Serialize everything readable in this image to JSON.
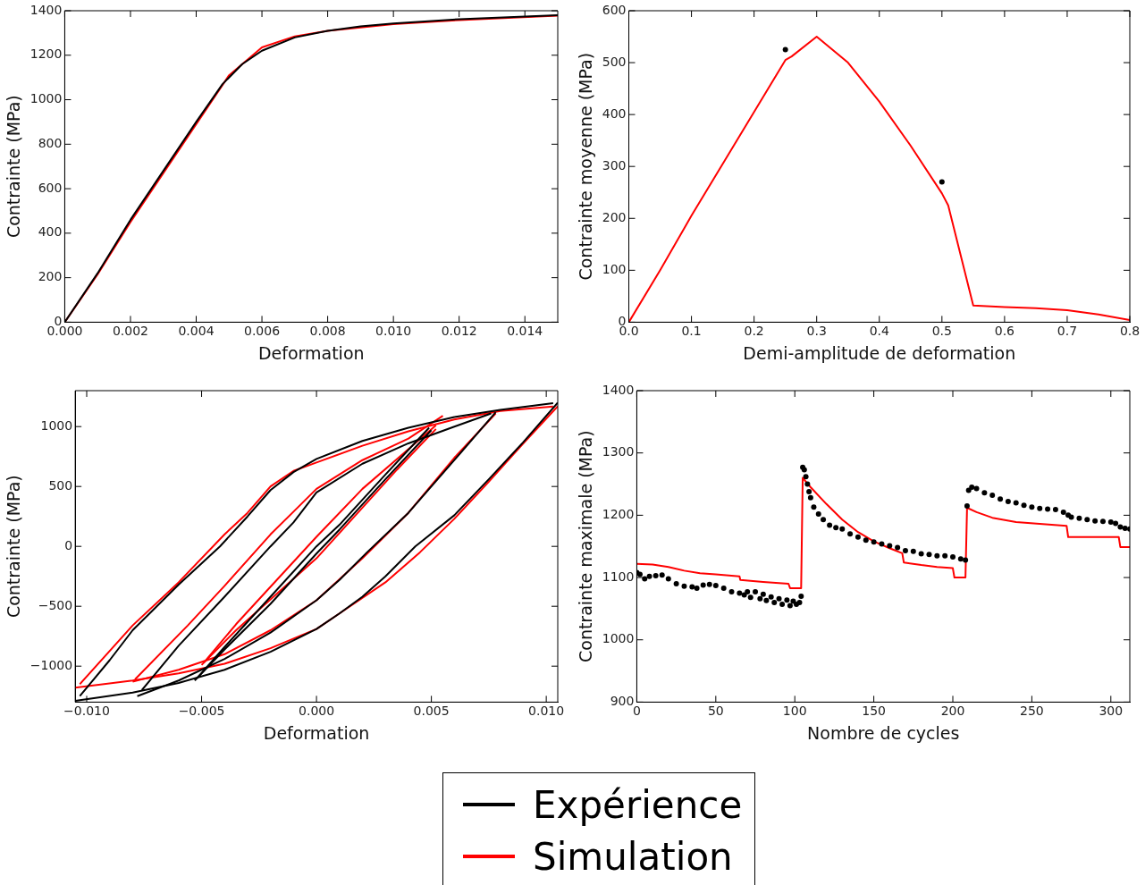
{
  "chart_data": [
    {
      "type": "line",
      "xlabel": "Deformation",
      "ylabel": "Contrainte (MPa)",
      "legend": "bottom",
      "xlim": [
        0,
        0.015
      ],
      "ylim": [
        0,
        1400
      ],
      "xticks": [
        {
          "value": 0,
          "label": "0.000"
        },
        {
          "value": 0.002,
          "label": "0.002"
        },
        {
          "value": 0.004,
          "label": "0.004"
        },
        {
          "value": 0.006,
          "label": "0.006"
        },
        {
          "value": 0.008,
          "label": "0.008"
        },
        {
          "value": 0.01,
          "label": "0.010"
        },
        {
          "value": 0.012,
          "label": "0.012"
        },
        {
          "value": 0.014,
          "label": "0.014"
        }
      ],
      "yticks": [
        0,
        200,
        400,
        600,
        800,
        1000,
        1200,
        1400
      ],
      "grid": false,
      "series": [
        {
          "name": "Expérience",
          "color": "#000000",
          "x": [
            0,
            0.001,
            0.002,
            0.003,
            0.004,
            0.0048,
            0.0054,
            0.006,
            0.007,
            0.008,
            0.009,
            0.01,
            0.012,
            0.015
          ],
          "values": [
            0,
            220,
            460,
            680,
            900,
            1070,
            1160,
            1220,
            1280,
            1310,
            1330,
            1343,
            1362,
            1380
          ]
        },
        {
          "name": "Simulation",
          "color": "#ff0000",
          "x": [
            0,
            0.001,
            0.002,
            0.003,
            0.004,
            0.005,
            0.006,
            0.007,
            0.008,
            0.01,
            0.012,
            0.015
          ],
          "values": [
            0,
            215,
            450,
            670,
            890,
            1110,
            1235,
            1285,
            1310,
            1340,
            1358,
            1378
          ]
        }
      ]
    },
    {
      "type": "line",
      "xlabel": "Demi-amplitude de deformation",
      "ylabel": "Contrainte moyenne (MPa)",
      "xlim": [
        0,
        0.8
      ],
      "ylim": [
        0,
        600
      ],
      "xticks": [
        {
          "value": 0,
          "label": "0.0"
        },
        {
          "value": 0.1,
          "label": "0.1"
        },
        {
          "value": 0.2,
          "label": "0.2"
        },
        {
          "value": 0.3,
          "label": "0.3"
        },
        {
          "value": 0.4,
          "label": "0.4"
        },
        {
          "value": 0.5,
          "label": "0.5"
        },
        {
          "value": 0.6,
          "label": "0.6"
        },
        {
          "value": 0.7,
          "label": "0.7"
        },
        {
          "value": 0.8,
          "label": "0.8"
        }
      ],
      "yticks": [
        0,
        100,
        200,
        300,
        400,
        500,
        600
      ],
      "grid": false,
      "series": [
        {
          "name": "Expérience",
          "type": "scatter",
          "marker": "circle",
          "color": "#000000",
          "x": [
            0.25,
            0.5
          ],
          "values": [
            525,
            270
          ]
        },
        {
          "name": "Simulation",
          "color": "#ff0000",
          "x": [
            0,
            0.05,
            0.1,
            0.15,
            0.2,
            0.25,
            0.26,
            0.3,
            0.35,
            0.4,
            0.45,
            0.5,
            0.51,
            0.55,
            0.6,
            0.65,
            0.7,
            0.75,
            0.8
          ],
          "values": [
            0,
            100,
            205,
            305,
            405,
            505,
            512,
            550,
            500,
            425,
            340,
            248,
            225,
            32,
            29,
            27,
            23,
            15,
            4
          ]
        }
      ]
    },
    {
      "type": "line",
      "xlabel": "Deformation",
      "ylabel": "Contrainte (MPa)",
      "xlim": [
        -0.0105,
        0.0105
      ],
      "ylim": [
        -1300,
        1300
      ],
      "xticks": [
        {
          "value": -0.01,
          "label": "−0.010"
        },
        {
          "value": -0.005,
          "label": "−0.005"
        },
        {
          "value": 0,
          "label": "0.000"
        },
        {
          "value": 0.005,
          "label": "0.005"
        },
        {
          "value": 0.01,
          "label": "0.010"
        }
      ],
      "yticks": [
        {
          "value": -1000,
          "label": "−1000"
        },
        {
          "value": -500,
          "label": "−500"
        },
        0,
        500,
        1000
      ],
      "grid": false,
      "series": [
        {
          "name": "Expérience",
          "color": "#000000",
          "x": [
            0.0105,
            0.009,
            0.0075,
            0.006,
            0.0043,
            0.003,
            0.002,
            0.001,
            0,
            -0.002,
            -0.004,
            -0.006,
            -0.008,
            -0.0105
          ],
          "values": [
            1200,
            870,
            560,
            260,
            0,
            -250,
            -420,
            -560,
            -690,
            -880,
            -1030,
            -1140,
            -1220,
            -1290
          ]
        },
        {
          "name": "Expérience",
          "color": "#000000",
          "x": [
            -0.0103,
            -0.009,
            -0.008,
            -0.006,
            -0.0042,
            -0.003,
            -0.002,
            -0.001,
            0,
            0.002,
            0.004,
            0.006,
            0.008,
            0.0103
          ],
          "values": [
            -1250,
            -950,
            -700,
            -320,
            0,
            250,
            470,
            620,
            730,
            880,
            990,
            1080,
            1140,
            1195
          ]
        },
        {
          "name": "Expérience",
          "color": "#000000",
          "x": [
            0.0078,
            0.006,
            0.004,
            0.0022,
            0.001,
            0,
            -0.002,
            -0.004,
            -0.006,
            -0.0078
          ],
          "values": [
            1120,
            720,
            280,
            -50,
            -280,
            -450,
            -720,
            -940,
            -1120,
            -1250
          ]
        },
        {
          "name": "Expérience",
          "color": "#000000",
          "x": [
            -0.0076,
            -0.006,
            -0.004,
            -0.002,
            -0.001,
            0,
            0.002,
            0.004,
            0.006,
            0.0076
          ],
          "values": [
            -1200,
            -830,
            -420,
            0,
            200,
            450,
            690,
            860,
            1000,
            1110
          ]
        },
        {
          "name": "Expérience",
          "color": "#000000",
          "x": [
            0.005,
            0.003,
            0.001,
            0,
            -0.002,
            -0.004,
            -0.0053
          ],
          "values": [
            970,
            560,
            140,
            -60,
            -480,
            -860,
            -1120
          ]
        },
        {
          "name": "Expérience",
          "color": "#000000",
          "x": [
            -0.0052,
            -0.004,
            -0.002,
            0,
            0.001,
            0.003,
            0.0049
          ],
          "values": [
            -1100,
            -840,
            -420,
            0,
            180,
            600,
            990
          ]
        },
        {
          "name": "Simulation",
          "color": "#ff0000",
          "x": [
            0.0105,
            0.009,
            0.0075,
            0.006,
            0.0045,
            0.003,
            0.001,
            0,
            -0.002,
            -0.004,
            -0.006,
            -0.008,
            -0.0105
          ],
          "values": [
            1170,
            860,
            540,
            230,
            -50,
            -300,
            -560,
            -690,
            -850,
            -980,
            -1060,
            -1120,
            -1180
          ]
        },
        {
          "name": "Simulation",
          "color": "#ff0000",
          "x": [
            -0.0103,
            -0.008,
            -0.006,
            -0.004,
            -0.003,
            -0.002,
            -0.001,
            0,
            0.002,
            0.004,
            0.006,
            0.008,
            0.0103
          ],
          "values": [
            -1150,
            -660,
            -300,
            100,
            280,
            500,
            630,
            700,
            840,
            960,
            1060,
            1130,
            1168
          ]
        },
        {
          "name": "Simulation",
          "color": "#ff0000",
          "x": [
            0.0078,
            0.006,
            0.004,
            0.002,
            0,
            -0.002,
            -0.004,
            -0.006,
            -0.008
          ],
          "values": [
            1110,
            740,
            280,
            -100,
            -450,
            -700,
            -900,
            -1030,
            -1130
          ]
        },
        {
          "name": "Simulation",
          "color": "#ff0000",
          "x": [
            -0.0079,
            -0.0056,
            -0.004,
            -0.002,
            -0.001,
            0,
            0.002,
            0.004,
            0.0055
          ],
          "values": [
            -1110,
            -660,
            -330,
            100,
            290,
            480,
            720,
            900,
            1090
          ]
        },
        {
          "name": "Simulation",
          "color": "#ff0000",
          "x": [
            0.0052,
            0.0035,
            0,
            -0.0035,
            -0.005
          ],
          "values": [
            980,
            640,
            -100,
            -700,
            -990
          ]
        },
        {
          "name": "Simulation",
          "color": "#ff0000",
          "x": [
            -0.0049,
            -0.0035,
            0,
            0.002,
            0.0052
          ],
          "values": [
            -970,
            -650,
            80,
            480,
            1010
          ]
        }
      ]
    },
    {
      "type": "line",
      "xlabel": "Nombre de cycles",
      "ylabel": "Contrainte maximale (MPa)",
      "xlim": [
        0,
        312
      ],
      "ylim": [
        900,
        1400
      ],
      "xticks": [
        0,
        50,
        100,
        150,
        200,
        250,
        300
      ],
      "yticks": [
        900,
        1000,
        1100,
        1200,
        1300,
        1400
      ],
      "grid": false,
      "series": [
        {
          "name": "Expérience",
          "type": "scatter",
          "marker": "circle",
          "color": "#000000",
          "x": [
            0,
            2,
            5,
            8,
            12,
            16,
            20,
            25,
            30,
            35,
            38,
            42,
            46,
            50,
            55,
            60,
            65,
            68,
            70,
            72,
            75,
            78,
            80,
            82,
            85,
            87,
            90,
            92,
            95,
            97,
            99,
            101,
            103,
            104,
            105,
            106,
            107,
            108,
            109,
            110,
            112,
            115,
            118,
            122,
            126,
            130,
            135,
            140,
            145,
            150,
            155,
            160,
            165,
            170,
            175,
            180,
            185,
            190,
            195,
            200,
            205,
            208,
            209,
            210,
            212,
            215,
            220,
            225,
            230,
            235,
            240,
            245,
            250,
            255,
            260,
            265,
            270,
            273,
            275,
            280,
            285,
            290,
            295,
            300,
            303,
            306,
            309,
            312
          ],
          "values": [
            1108,
            1105,
            1098,
            1102,
            1103,
            1104,
            1098,
            1090,
            1086,
            1085,
            1083,
            1088,
            1089,
            1087,
            1083,
            1077,
            1075,
            1072,
            1077,
            1068,
            1077,
            1066,
            1073,
            1063,
            1069,
            1060,
            1066,
            1057,
            1064,
            1055,
            1062,
            1057,
            1060,
            1070,
            1277,
            1273,
            1262,
            1250,
            1238,
            1228,
            1213,
            1202,
            1193,
            1184,
            1180,
            1178,
            1170,
            1165,
            1160,
            1157,
            1154,
            1151,
            1148,
            1143,
            1142,
            1138,
            1137,
            1135,
            1135,
            1133,
            1130,
            1128,
            1215,
            1240,
            1245,
            1243,
            1236,
            1232,
            1226,
            1222,
            1220,
            1216,
            1213,
            1211,
            1210,
            1209,
            1205,
            1200,
            1197,
            1195,
            1193,
            1191,
            1190,
            1189,
            1187,
            1181,
            1179,
            1178
          ]
        },
        {
          "name": "Simulation",
          "color": "#ff0000",
          "x": [
            0,
            10,
            20,
            30,
            40,
            50,
            65,
            65.5,
            80,
            96,
            97,
            104,
            105,
            110,
            120,
            130,
            140,
            150,
            160,
            168,
            169,
            180,
            190,
            200,
            201,
            208,
            209,
            215,
            225,
            240,
            255,
            272,
            273,
            305,
            306,
            312
          ],
          "values": [
            1122,
            1121,
            1117,
            1111,
            1107,
            1105,
            1102,
            1096,
            1093,
            1090,
            1083,
            1083,
            1260,
            1245,
            1218,
            1193,
            1173,
            1158,
            1147,
            1139,
            1124,
            1120,
            1117,
            1115,
            1100,
            1100,
            1212,
            1205,
            1196,
            1189,
            1186,
            1183,
            1165,
            1165,
            1149,
            1149
          ]
        }
      ]
    }
  ]
}
